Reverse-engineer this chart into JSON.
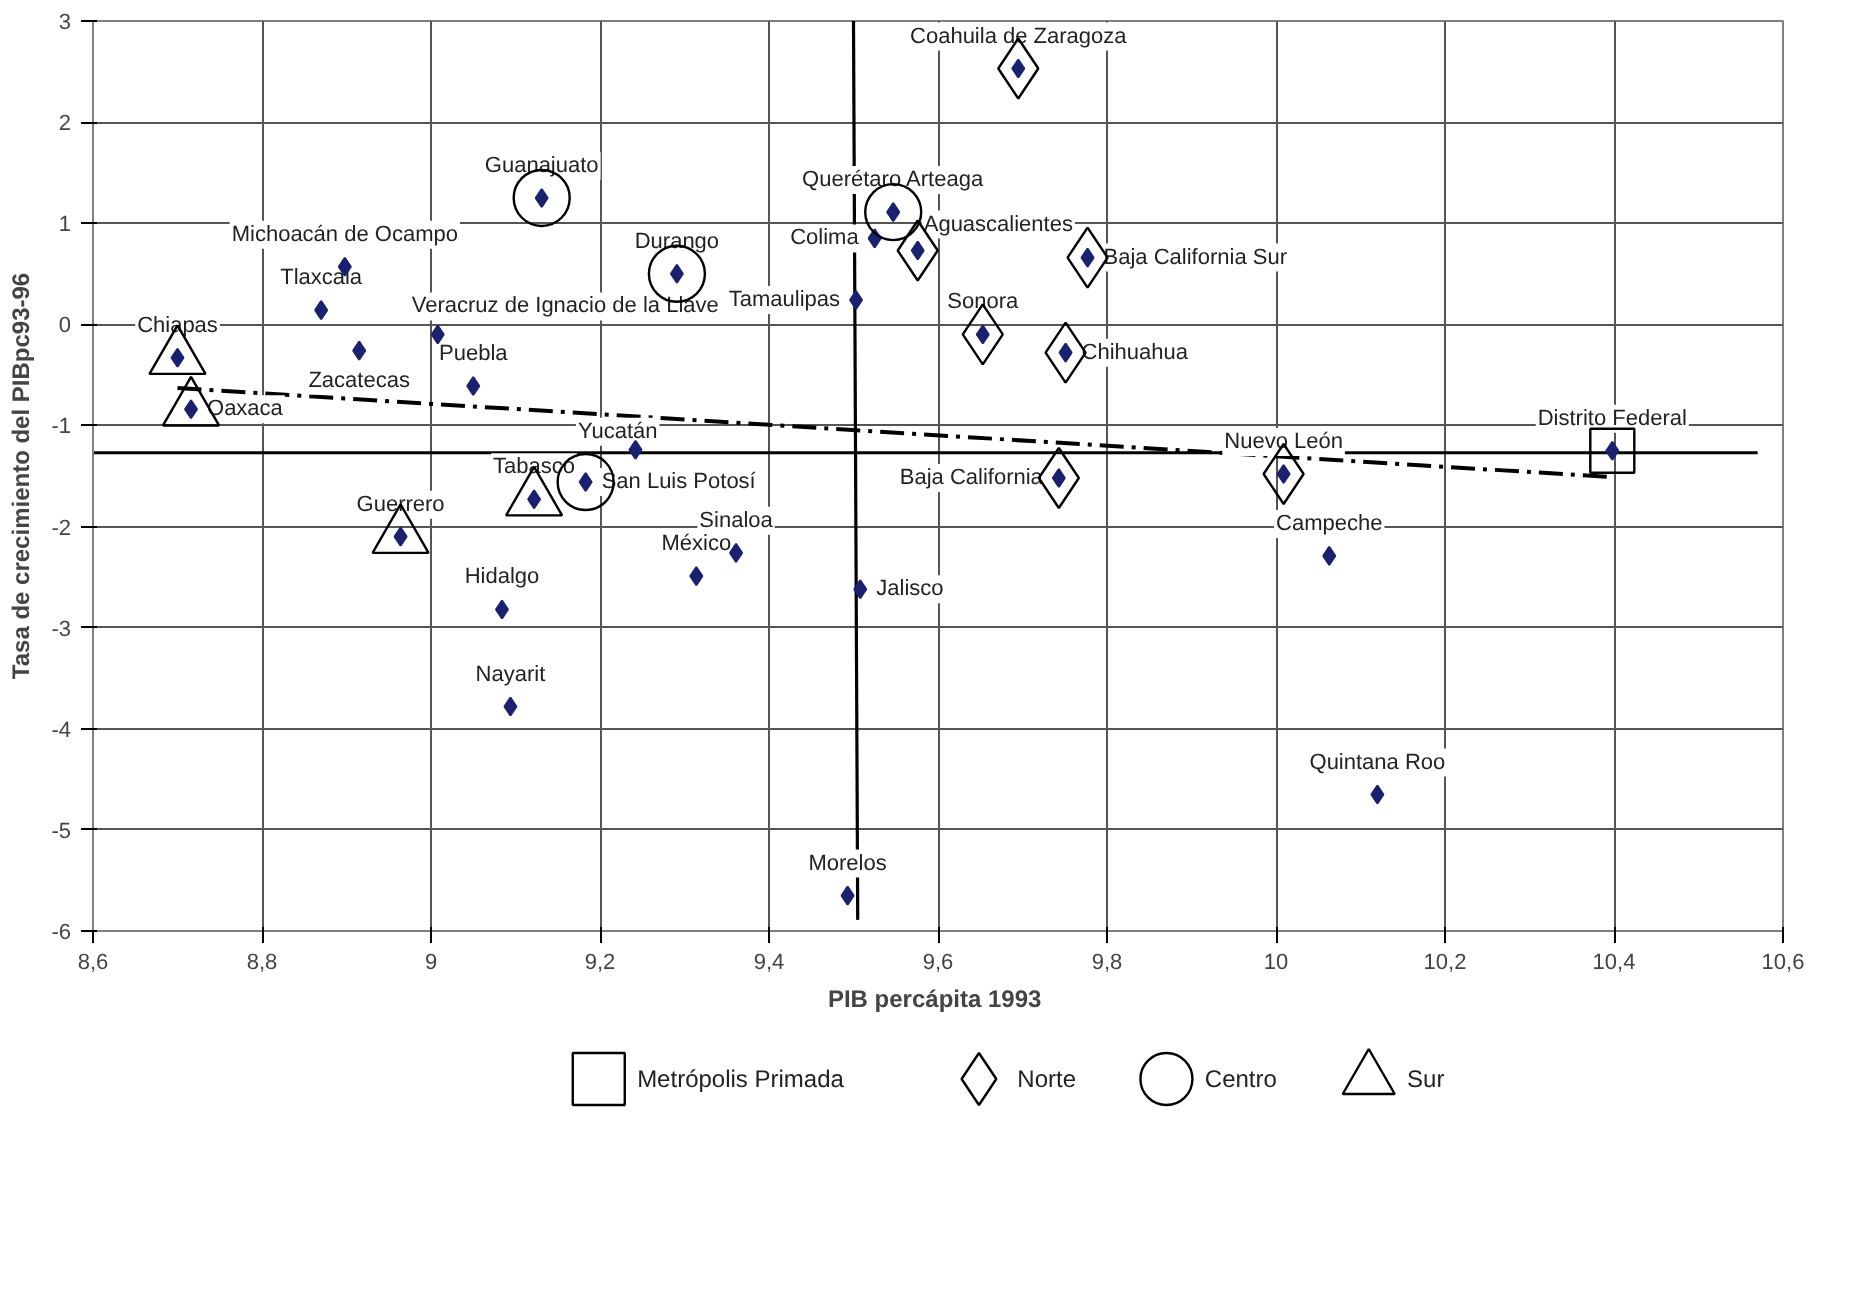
{
  "chart_data": {
    "type": "scatter",
    "xlabel": "PIB percápita  1993",
    "ylabel": "Tasa de crecimiento del PIBpc93-96",
    "xlim": [
      8.6,
      10.6
    ],
    "ylim": [
      -6,
      3
    ],
    "xticks": [
      {
        "value": 8.6,
        "label": "8,6"
      },
      {
        "value": 8.8,
        "label": "8,8"
      },
      9,
      {
        "value": 9.2,
        "label": "9,2"
      },
      {
        "value": 9.4,
        "label": "9,4"
      },
      {
        "value": 9.6,
        "label": "9,6"
      },
      {
        "value": 9.8,
        "label": "9,8"
      },
      10,
      {
        "value": 10.2,
        "label": "10,2"
      },
      {
        "value": 10.4,
        "label": "10,4"
      },
      {
        "value": 10.6,
        "label": "10,6"
      }
    ],
    "yticks": [
      -6,
      -5,
      -4,
      -3,
      -2,
      -1,
      0,
      1,
      2,
      3
    ],
    "grid": true,
    "legend": "bottom",
    "series": [
      {
        "type": "line",
        "color": "#000000",
        "line_style": "solid",
        "marker": "none",
        "x": [
          8.6,
          10.57
        ],
        "values": [
          -1.27,
          -1.27
        ]
      },
      {
        "type": "line",
        "color": "#000000",
        "line_style": "solid",
        "marker": "none",
        "x": [
          9.5,
          9.505
        ],
        "values": [
          3,
          -5.89
        ]
      },
      {
        "type": "line",
        "color": "#000000",
        "line_style": "dashed",
        "marker": "none",
        "x": [
          8.7,
          10.395
        ],
        "values": [
          -0.63,
          -1.51
        ]
      },
      {
        "type": "scatter",
        "color": "#1a2270",
        "marker": "diamond",
        "x": [
          9.695,
          9.131,
          9.547,
          8.898,
          9.525,
          9.576,
          9.777,
          9.291,
          8.87,
          9.008,
          9.503,
          9.653,
          9.751,
          8.915,
          8.7,
          9.05,
          8.716,
          9.242,
          10.398,
          10.009,
          9.743,
          9.183,
          9.122,
          8.964,
          9.361,
          10.063,
          9.314,
          9.508,
          9.084,
          9.094,
          10.12,
          9.493
        ],
        "values": [
          2.53,
          1.25,
          1.11,
          0.57,
          0.85,
          0.73,
          0.66,
          0.5,
          0.14,
          -0.1,
          0.24,
          -0.1,
          -0.28,
          -0.26,
          -0.33,
          -0.61,
          -0.84,
          -1.24,
          -1.25,
          -1.48,
          -1.52,
          -1.56,
          -1.73,
          -2.1,
          -2.26,
          -2.29,
          -2.49,
          -2.62,
          -2.82,
          -3.78,
          -4.65,
          -5.65
        ]
      },
      {
        "type": "scatter",
        "name": "Metrópolis Primada",
        "color": "#000000",
        "marker": "square",
        "x": [
          10.398
        ],
        "values": [
          -1.25
        ]
      },
      {
        "type": "scatter",
        "name": "Norte",
        "color": "#000000",
        "marker": "diamond",
        "x": [
          9.695,
          9.576,
          9.777,
          9.653,
          9.751,
          9.743,
          10.009
        ],
        "values": [
          2.53,
          0.73,
          0.66,
          -0.1,
          -0.28,
          -1.52,
          -1.48
        ]
      },
      {
        "type": "scatter",
        "name": "Centro",
        "color": "#000000",
        "marker": "circle",
        "x": [
          9.131,
          9.547,
          9.291,
          9.183
        ],
        "values": [
          1.25,
          1.11,
          0.5,
          -1.56
        ]
      },
      {
        "type": "scatter",
        "name": "Sur",
        "color": "#000000",
        "marker": "triangle",
        "x": [
          8.7,
          8.716,
          9.122,
          8.964
        ],
        "values": [
          -0.33,
          -0.84,
          -1.73,
          -2.1
        ]
      }
    ],
    "annotations": [
      {
        "text": "Coahuila de Zaragoza",
        "x": 9.695,
        "y": 2.53
      },
      {
        "text": "Guanajuato",
        "x": 9.131,
        "y": 1.25
      },
      {
        "text": "Querétaro Arteaga",
        "x": 9.547,
        "y": 1.11
      },
      {
        "text": "Michoacán de Ocampo",
        "x": 8.898,
        "y": 0.57
      },
      {
        "text": "Colima",
        "x": 9.525,
        "y": 0.85
      },
      {
        "text": "Aguascalientes",
        "x": 9.576,
        "y": 0.73
      },
      {
        "text": "Baja California Sur",
        "x": 9.777,
        "y": 0.66
      },
      {
        "text": "Durango",
        "x": 9.291,
        "y": 0.5
      },
      {
        "text": "Tlaxcala",
        "x": 8.87,
        "y": 0.14
      },
      {
        "text": "Veracruz de Ignacio de la Llave",
        "x": 9.008,
        "y": -0.1
      },
      {
        "text": "Tamaulipas",
        "x": 9.503,
        "y": 0.24
      },
      {
        "text": "Sonora",
        "x": 9.653,
        "y": -0.1
      },
      {
        "text": "Chihuahua",
        "x": 9.751,
        "y": -0.28
      },
      {
        "text": "Zacatecas",
        "x": 8.915,
        "y": -0.26
      },
      {
        "text": "Chiapas",
        "x": 8.7,
        "y": -0.33
      },
      {
        "text": "Puebla",
        "x": 9.05,
        "y": -0.61
      },
      {
        "text": "Oaxaca",
        "x": 8.716,
        "y": -0.84
      },
      {
        "text": "Yucatán",
        "x": 9.242,
        "y": -1.24
      },
      {
        "text": "Distrito Federal",
        "x": 10.398,
        "y": -1.25
      },
      {
        "text": "Nuevo León",
        "x": 10.009,
        "y": -1.48
      },
      {
        "text": "Baja California",
        "x": 9.743,
        "y": -1.52
      },
      {
        "text": "San Luis Potosí",
        "x": 9.183,
        "y": -1.56
      },
      {
        "text": "Tabasco",
        "x": 9.122,
        "y": -1.73
      },
      {
        "text": "Guerrero",
        "x": 8.964,
        "y": -2.1
      },
      {
        "text": "Sinaloa",
        "x": 9.361,
        "y": -2.26
      },
      {
        "text": "Campeche",
        "x": 10.063,
        "y": -2.29
      },
      {
        "text": "México",
        "x": 9.314,
        "y": -2.49
      },
      {
        "text": "Jalisco",
        "x": 9.508,
        "y": -2.62
      },
      {
        "text": "Hidalgo",
        "x": 9.084,
        "y": -2.82
      },
      {
        "text": "Nayarit",
        "x": 9.094,
        "y": -3.78
      },
      {
        "text": "Quintana Roo",
        "x": 10.12,
        "y": -4.65
      },
      {
        "text": "Morelos",
        "x": 9.493,
        "y": -5.65
      }
    ]
  }
}
